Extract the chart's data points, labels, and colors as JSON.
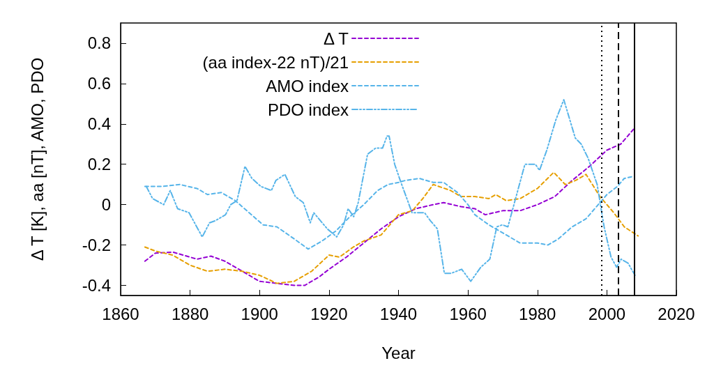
{
  "chart_data": {
    "type": "line",
    "xlabel": "Year",
    "ylabel": "Δ T [K], aa [nT], AMO, PDO",
    "xlim": [
      1860,
      2020
    ],
    "xticks": [
      1860,
      1880,
      1900,
      1920,
      1940,
      1960,
      1980,
      2000,
      2020
    ],
    "ylim": [
      -0.45,
      0.9
    ],
    "yticks": [
      -0.4,
      -0.2,
      0,
      0.2,
      0.4,
      0.6,
      0.8
    ],
    "grid": false,
    "legend": "top",
    "marker": "none",
    "series": [
      {
        "name": "Δ T",
        "color": "#9400d3",
        "line_style": "dashed",
        "x": [
          1867,
          1870,
          1875,
          1880,
          1882,
          1886,
          1890,
          1895,
          1900,
          1905,
          1910,
          1913,
          1917,
          1920,
          1925,
          1930,
          1935,
          1940,
          1945,
          1950,
          1953,
          1958,
          1962,
          1965,
          1970,
          1975,
          1980,
          1985,
          1990,
          1995,
          2000,
          2004,
          2008
        ],
        "values": [
          -0.28,
          -0.24,
          -0.235,
          -0.26,
          -0.27,
          -0.255,
          -0.28,
          -0.33,
          -0.38,
          -0.39,
          -0.4,
          -0.4,
          -0.36,
          -0.32,
          -0.26,
          -0.19,
          -0.12,
          -0.06,
          -0.02,
          0.0,
          0.01,
          -0.01,
          -0.02,
          -0.05,
          -0.03,
          -0.03,
          0.0,
          0.04,
          0.12,
          0.19,
          0.27,
          0.3,
          0.38
        ]
      },
      {
        "name": "(aa index-22 nT)/21",
        "color": "#e69f00",
        "line_style": "dashed",
        "x": [
          1867,
          1870,
          1875,
          1880,
          1885,
          1890,
          1895,
          1900,
          1905,
          1910,
          1915,
          1920,
          1923,
          1927,
          1930,
          1935,
          1940,
          1944,
          1947,
          1950,
          1955,
          1958,
          1962,
          1966,
          1968,
          1971,
          1975,
          1980,
          1984.7,
          1988,
          1991,
          1994,
          1998,
          2002,
          2005,
          2009
        ],
        "values": [
          -0.21,
          -0.23,
          -0.25,
          -0.3,
          -0.33,
          -0.32,
          -0.33,
          -0.35,
          -0.39,
          -0.38,
          -0.33,
          -0.25,
          -0.26,
          -0.21,
          -0.18,
          -0.15,
          -0.05,
          -0.03,
          0.03,
          0.1,
          0.07,
          0.04,
          0.04,
          0.03,
          0.05,
          0.02,
          0.03,
          0.08,
          0.16,
          0.1,
          0.12,
          0.15,
          0.04,
          -0.04,
          -0.11,
          -0.155
        ]
      },
      {
        "name": "AMO index",
        "color": "#56b4e9",
        "line_style": "dashed",
        "x": [
          1867,
          1872,
          1877,
          1882,
          1885,
          1889,
          1893,
          1897,
          1901,
          1905,
          1910,
          1914,
          1918,
          1922,
          1926,
          1930,
          1934,
          1937,
          1940,
          1942,
          1946,
          1950,
          1953,
          1957,
          1960,
          1962,
          1966,
          1970,
          1975,
          1980,
          1983,
          1986,
          1990,
          1994,
          1997,
          2000,
          2003,
          2005,
          2007.7
        ],
        "values": [
          0.09,
          0.09,
          0.1,
          0.08,
          0.05,
          0.06,
          0.02,
          -0.04,
          -0.1,
          -0.11,
          -0.17,
          -0.22,
          -0.18,
          -0.13,
          -0.06,
          0.0,
          0.07,
          0.1,
          0.11,
          0.12,
          0.13,
          0.11,
          0.11,
          0.06,
          0.0,
          -0.05,
          -0.1,
          -0.14,
          -0.19,
          -0.19,
          -0.2,
          -0.17,
          -0.11,
          -0.07,
          -0.01,
          0.05,
          0.09,
          0.13,
          0.14
        ]
      },
      {
        "name": "PDO index",
        "color": "#56b4e9",
        "line_style": "dotted",
        "x": [
          1867.4,
          1869.2,
          1872.4,
          1874.3,
          1876.4,
          1879.7,
          1883.5,
          1885.6,
          1887.2,
          1890.2,
          1891.7,
          1893.5,
          1895.8,
          1897.8,
          1900.4,
          1903.4,
          1904.7,
          1907.3,
          1910.3,
          1912.6,
          1914.6,
          1915.6,
          1919.5,
          1922.2,
          1924.2,
          1925.5,
          1927.1,
          1928.4,
          1931.1,
          1933.4,
          1935.4,
          1936.7,
          1937.3,
          1938.9,
          1940.5,
          1943.9,
          1947.5,
          1949.2,
          1951.2,
          1953.2,
          1955.2,
          1958.2,
          1960.8,
          1963.7,
          1966.3,
          1968.3,
          1969.9,
          1971.5,
          1976.4,
          1979.4,
          1980.6,
          1982.7,
          1985.3,
          1987.6,
          1990.9,
          1992.6,
          1994.6,
          1997.2,
          1999.2,
          2001.2,
          2002.8,
          2004.1,
          2006.1,
          2008.1
        ],
        "values": [
          0.09,
          0.03,
          0.0,
          0.07,
          -0.02,
          -0.04,
          -0.16,
          -0.09,
          -0.08,
          -0.05,
          0.0,
          0.02,
          0.19,
          0.13,
          0.09,
          0.07,
          0.12,
          0.15,
          0.04,
          0.01,
          -0.09,
          -0.04,
          -0.12,
          -0.16,
          -0.1,
          -0.02,
          -0.06,
          0.01,
          0.25,
          0.28,
          0.28,
          0.34,
          0.34,
          0.2,
          0.12,
          -0.04,
          -0.04,
          -0.08,
          -0.12,
          -0.34,
          -0.34,
          -0.32,
          -0.38,
          -0.31,
          -0.27,
          -0.11,
          -0.1,
          -0.11,
          0.2,
          0.2,
          0.17,
          0.27,
          0.42,
          0.52,
          0.33,
          0.3,
          0.23,
          0.1,
          -0.11,
          -0.26,
          -0.31,
          -0.27,
          -0.29,
          -0.35
        ]
      }
    ],
    "ref_lines": [
      {
        "axis": "x",
        "value": 1998.4,
        "label": null,
        "color": "#000000",
        "line_style": "dotted"
      },
      {
        "axis": "x",
        "value": 2003.2,
        "label": null,
        "color": "#000000",
        "line_style": "dashed"
      },
      {
        "axis": "x",
        "value": 2008,
        "label": null,
        "color": "#000000",
        "line_style": "solid"
      }
    ]
  }
}
